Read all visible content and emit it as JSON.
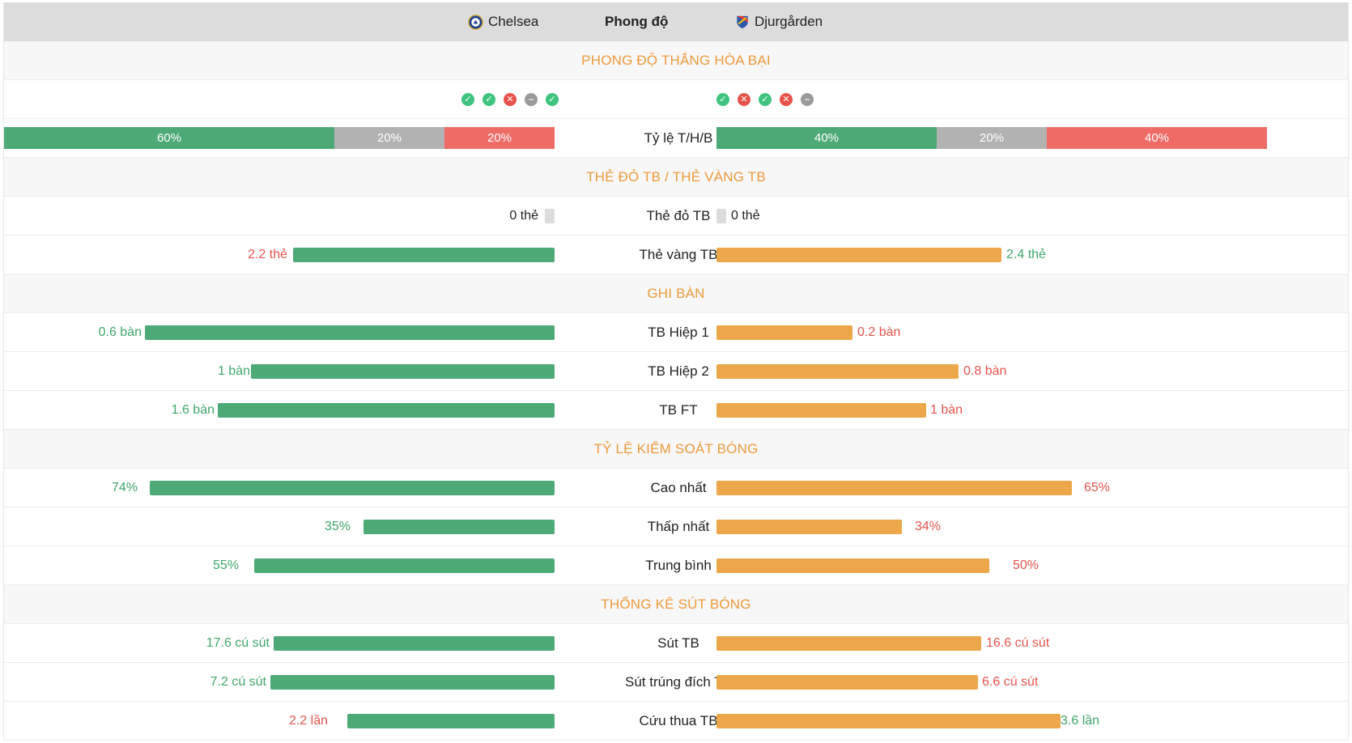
{
  "header": {
    "home_team": "Chelsea",
    "center_title": "Phong độ",
    "away_team": "Djurgården"
  },
  "sections": {
    "form": "PHONG ĐỘ THẮNG HÒA BẠI",
    "cards": "THẺ ĐỎ TB / THẺ VÀNG TB",
    "goals": "GHI BÀN",
    "possession": "TỶ LỆ KIỂM SOÁT BÓNG",
    "shots": "THỐNG KÊ SÚT BÓNG"
  },
  "form": {
    "home": [
      "win",
      "win",
      "loss",
      "draw",
      "win"
    ],
    "away": [
      "win",
      "loss",
      "win",
      "loss",
      "draw"
    ]
  },
  "rate": {
    "label": "Tỷ lệ T/H/B",
    "home": {
      "win": "60%",
      "draw": "20%",
      "loss": "20%",
      "win_frac": 0.6,
      "draw_frac": 0.2,
      "loss_frac": 0.2
    },
    "away": {
      "win": "40%",
      "draw": "20%",
      "loss": "40%",
      "win_frac": 0.4,
      "draw_frac": 0.2,
      "loss_frac": 0.4
    }
  },
  "cards": {
    "red": {
      "label": "Thẻ đỏ TB",
      "home": "0 thẻ",
      "away": "0 thẻ"
    },
    "yellow": {
      "label": "Thẻ vàng TB",
      "home": "2.2 thẻ",
      "away": "2.4 thẻ",
      "home_frac": 0.46,
      "away_frac": 0.49
    }
  },
  "goals": [
    {
      "label": "TB Hiệp 1",
      "home": "0.6 bàn",
      "away": "0.2 bàn",
      "home_frac": 0.74,
      "away_frac": 0.25
    },
    {
      "label": "TB Hiệp 2",
      "home": "1 bàn",
      "away": "0.8 bàn",
      "home_frac": 0.55,
      "away_frac": 0.44
    },
    {
      "label": "TB FT",
      "home": "1.6 bàn",
      "away": "1 bàn",
      "home_frac": 0.61,
      "away_frac": 0.38
    }
  ],
  "possession": [
    {
      "label": "Cao nhất",
      "home": "74%",
      "away": "65%",
      "home_frac": 0.74,
      "away_frac": 0.65
    },
    {
      "label": "Thấp nhất",
      "home": "35%",
      "away": "34%",
      "home_frac": 0.35,
      "away_frac": 0.34
    },
    {
      "label": "Trung bình",
      "home": "55%",
      "away": "50%",
      "home_frac": 0.55,
      "away_frac": 0.5
    }
  ],
  "shots": [
    {
      "label": "Sút TB",
      "home": "17.6 cú sút",
      "away": "16.6 cú sút",
      "home_frac": 0.51,
      "away_frac": 0.48
    },
    {
      "label": "Sút trúng đích TB",
      "home": "7.2 cú sút",
      "away": "6.6 cú sút",
      "home_frac": 0.52,
      "away_frac": 0.47
    },
    {
      "label": "Cứu thua TB",
      "home": "2.2 lần",
      "away": "3.6 lần",
      "home_frac": 0.38,
      "away_frac": 0.62
    }
  ],
  "colors": {
    "home_bar": "#4daa77",
    "away_bar": "#eba74a",
    "section_title": "#eb9a3c",
    "win": "#3ec47e",
    "loss": "#e5534b",
    "draw": "#9a9a9a"
  }
}
